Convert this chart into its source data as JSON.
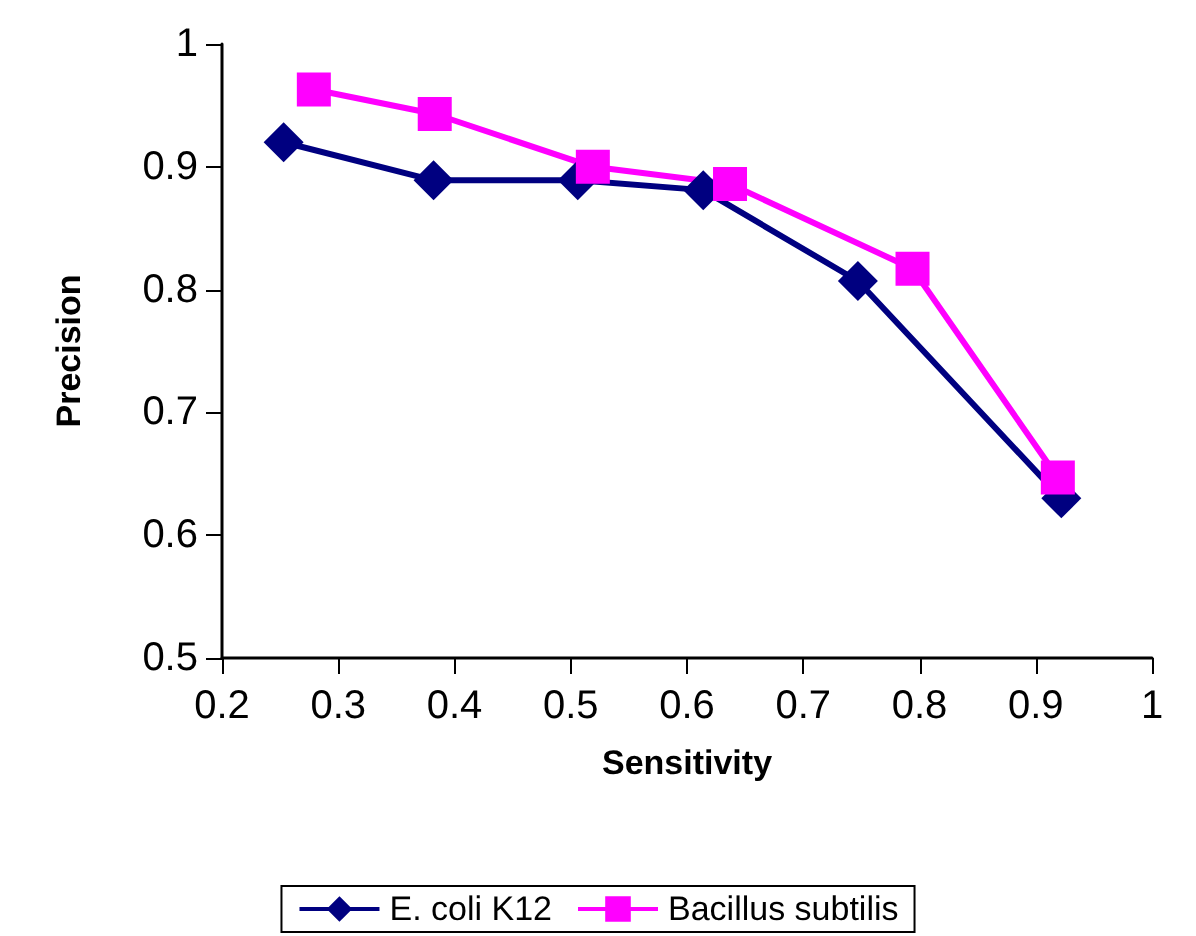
{
  "chart_data": {
    "type": "line",
    "xlabel": "Sensitivity",
    "ylabel": "Precision",
    "xlim": [
      0.2,
      1
    ],
    "xticks": [
      0.2,
      0.3,
      0.4,
      0.5,
      0.6,
      0.7,
      0.8,
      0.9,
      1
    ],
    "ylim": [
      0.5,
      1
    ],
    "yticks": [
      0.5,
      0.6,
      0.7,
      0.8,
      0.9,
      1
    ],
    "grid": false,
    "legend": "bottom",
    "line_style": "solid",
    "series": [
      {
        "name": "E. coli K12",
        "color": "#000080",
        "marker": "diamond",
        "x": [
          0.253,
          0.382,
          0.506,
          0.614,
          0.747,
          0.922
        ],
        "values": [
          0.92,
          0.889,
          0.889,
          0.881,
          0.807,
          0.63
        ]
      },
      {
        "name": "Bacillus subtilis",
        "color": "#ff00ff",
        "marker": "square",
        "x": [
          0.279,
          0.383,
          0.519,
          0.637,
          0.794,
          0.919
        ],
        "values": [
          0.963,
          0.943,
          0.9,
          0.886,
          0.817,
          0.647
        ]
      }
    ]
  }
}
